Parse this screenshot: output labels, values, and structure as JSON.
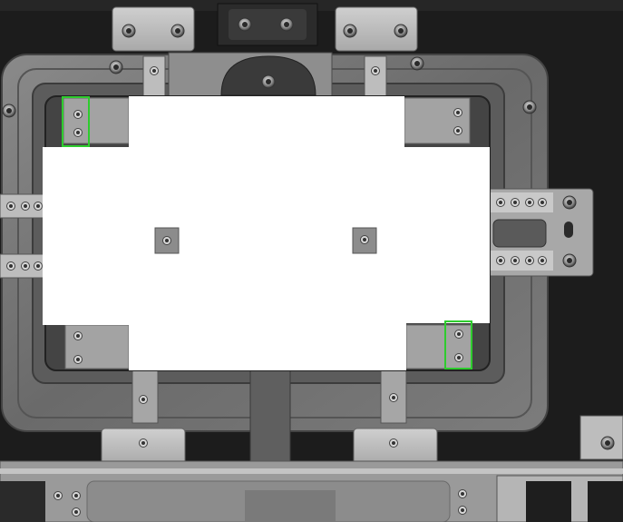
{
  "image": {
    "kind": "industrial inspection photo of a machined fixture plate holding a masked rectangular part",
    "palette": {
      "background": "#1c1c1c",
      "plate": "#6f6f6f",
      "plate_light": "#a9a9a9",
      "bracket": "#c2c2c2",
      "mask": "#ffffff",
      "screw_dark": "#2a2a2a",
      "detection_box": "#2ecc2e"
    }
  },
  "annotations": [
    {
      "name": "detection-box-top-left",
      "label": "",
      "color": "#2ecc2e"
    },
    {
      "name": "detection-box-bottom-right",
      "label": "",
      "color": "#2ecc2e"
    }
  ]
}
